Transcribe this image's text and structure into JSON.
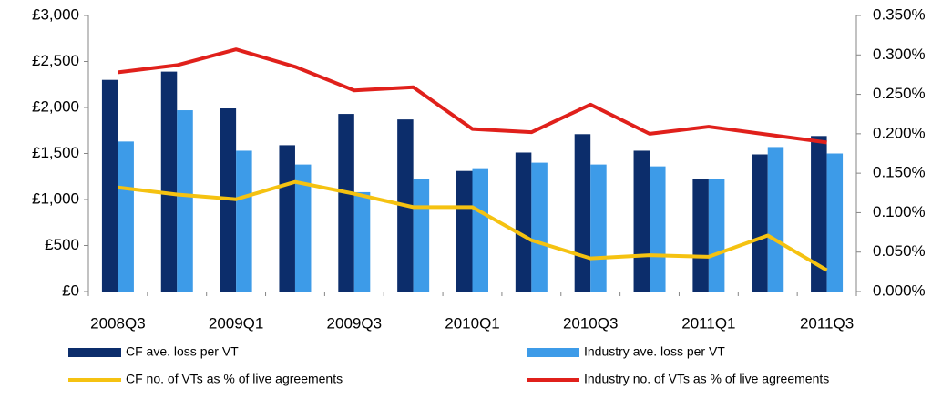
{
  "chart_data": {
    "type": "bar-line",
    "categories": [
      "2008Q3",
      null,
      "2009Q1",
      null,
      "2009Q3",
      null,
      "2010Q1",
      null,
      "2010Q3",
      null,
      "2011Q1",
      null,
      "2011Q3"
    ],
    "series": [
      {
        "name": "CF ave. loss per VT",
        "color": "#0c2d6b",
        "kind": "bar",
        "axis": "y",
        "values": [
          2300,
          2390,
          1990,
          1590,
          1930,
          1870,
          1310,
          1510,
          1710,
          1530,
          1220,
          1490,
          1690
        ]
      },
      {
        "name": "Industry ave. loss per VT",
        "color": "#3d9be8",
        "kind": "bar",
        "axis": "y",
        "values": [
          1630,
          1970,
          1530,
          1380,
          1080,
          1220,
          1340,
          1400,
          1380,
          1360,
          1220,
          1570,
          1500
        ]
      },
      {
        "name": "CF no. of  VTs as % of live agreements",
        "color": "#f5c211",
        "kind": "line",
        "axis": "y2",
        "values": [
          0.132,
          0.123,
          0.117,
          0.139,
          0.124,
          0.107,
          0.107,
          0.065,
          0.042,
          0.046,
          0.044,
          0.071,
          0.027
        ]
      },
      {
        "name": "Industry no. of VTs as % of live agreements",
        "color": "#e0201b",
        "kind": "line",
        "axis": "y2",
        "values": [
          0.278,
          0.287,
          0.307,
          0.285,
          0.255,
          0.259,
          0.206,
          0.202,
          0.237,
          0.2,
          0.209,
          0.199,
          0.189
        ]
      }
    ],
    "ylim": [
      0,
      3000
    ],
    "yticks": [
      {
        "value": 0,
        "label": "£0"
      },
      {
        "value": 500,
        "label": "£500"
      },
      {
        "value": 1000,
        "label": "£1,000"
      },
      {
        "value": 1500,
        "label": "£1,500"
      },
      {
        "value": 2000,
        "label": "£2,000"
      },
      {
        "value": 2500,
        "label": "£2,500"
      },
      {
        "value": 3000,
        "label": "£3,000"
      }
    ],
    "y2lim": [
      0,
      0.35
    ],
    "y2ticks": [
      {
        "value": 0,
        "label": "0.000%"
      },
      {
        "value": 0.05,
        "label": "0.050%"
      },
      {
        "value": 0.1,
        "label": "0.100%"
      },
      {
        "value": 0.15,
        "label": "0.150%"
      },
      {
        "value": 0.2,
        "label": "0.200%"
      },
      {
        "value": 0.25,
        "label": "0.250%"
      },
      {
        "value": 0.3,
        "label": "0.300%"
      },
      {
        "value": 0.35,
        "label": "0.350%"
      }
    ],
    "grid": false,
    "legend": "bottom"
  }
}
